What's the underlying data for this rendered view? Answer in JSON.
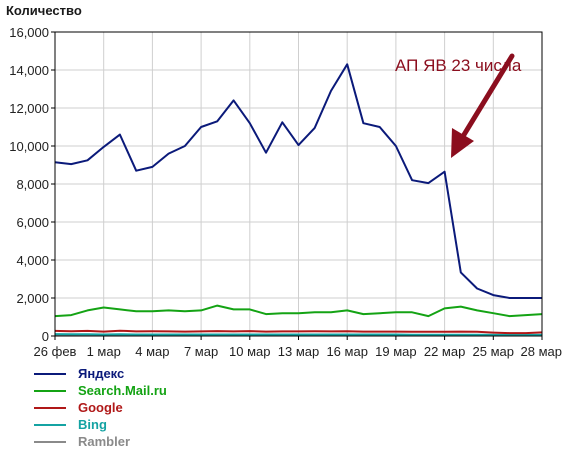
{
  "chart_data": {
    "type": "line",
    "title": "",
    "ylabel": "Количество",
    "xlabel": "",
    "ylim": [
      0,
      16000
    ],
    "yticks": [
      "0",
      "2,000",
      "4,000",
      "6,000",
      "8,000",
      "10,000",
      "12,000",
      "14,000",
      "16,000"
    ],
    "x_tick_labels": [
      "26 фев",
      "1 мар",
      "4 мар",
      "7 мар",
      "10 мар",
      "13 мар",
      "16 мар",
      "19 мар",
      "22 мар",
      "25 мар",
      "28 мар"
    ],
    "grid": true,
    "legend_position": "bottom-left",
    "series": [
      {
        "name": "Яндекс",
        "color": "#0b1a7a",
        "values": [
          9150,
          9050,
          9250,
          9950,
          10600,
          8700,
          8900,
          9600,
          10000,
          11000,
          11300,
          12400,
          11200,
          9650,
          11250,
          10050,
          10950,
          12900,
          14300,
          11200,
          11000,
          10000,
          8200,
          8050,
          8650,
          3350,
          2500,
          2150,
          2000,
          2000,
          2000
        ]
      },
      {
        "name": "Search.Mail.ru",
        "color": "#14a314",
        "values": [
          1050,
          1100,
          1350,
          1500,
          1400,
          1300,
          1300,
          1350,
          1300,
          1350,
          1600,
          1400,
          1400,
          1150,
          1200,
          1200,
          1250,
          1250,
          1350,
          1150,
          1200,
          1250,
          1250,
          1050,
          1450,
          1550,
          1350,
          1200,
          1050,
          1100,
          1150
        ]
      },
      {
        "name": "Google",
        "color": "#b01818",
        "values": [
          270,
          250,
          270,
          230,
          280,
          240,
          250,
          240,
          230,
          240,
          260,
          240,
          260,
          230,
          240,
          240,
          250,
          240,
          250,
          230,
          230,
          230,
          220,
          220,
          220,
          230,
          220,
          180,
          150,
          150,
          190
        ]
      },
      {
        "name": "Bing",
        "color": "#14a3a3",
        "values": [
          100,
          90,
          90,
          80,
          90,
          80,
          80,
          80,
          80,
          80,
          80,
          80,
          80,
          80,
          80,
          80,
          80,
          80,
          80,
          80,
          80,
          80,
          70,
          70,
          70,
          70,
          70,
          60,
          60,
          60,
          60
        ]
      },
      {
        "name": "Rambler",
        "color": "#8a8a8a",
        "values": [
          40,
          40,
          40,
          40,
          40,
          40,
          40,
          40,
          40,
          40,
          40,
          40,
          40,
          40,
          40,
          40,
          40,
          40,
          40,
          40,
          40,
          40,
          30,
          30,
          30,
          30,
          30,
          30,
          30,
          30,
          30
        ]
      }
    ],
    "annotation": {
      "text": "АП ЯВ 23 числа",
      "color": "#8b0e1e",
      "points_to_day_index": 24,
      "points_to_value": 8650
    }
  }
}
